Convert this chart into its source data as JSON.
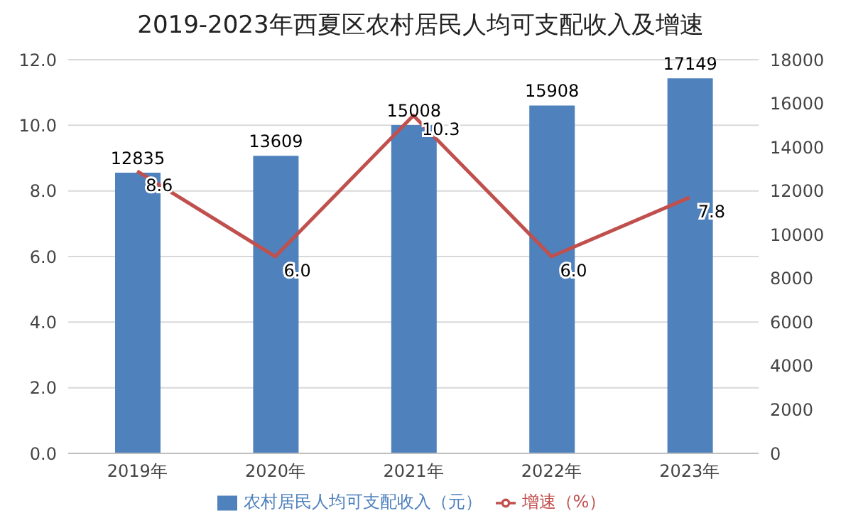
{
  "chart_data": {
    "type": "bar",
    "title": "2019-2023年西夏区农村居民人均可支配收入及增速",
    "categories": [
      "2019年",
      "2020年",
      "2021年",
      "2022年",
      "2023年"
    ],
    "series": [
      {
        "name": "农村居民人均可支配收入（元）",
        "axis": "y2",
        "color": "#4f81bd",
        "values": [
          12835,
          13609,
          15008,
          15908,
          17149
        ],
        "value_labels": [
          "12835",
          "13609",
          "15008",
          "15908",
          "17149"
        ]
      },
      {
        "name": "增速（%）",
        "type": "line",
        "axis": "y",
        "color": "#c0504d",
        "values": [
          8.6,
          6.0,
          10.3,
          6.0,
          7.8
        ],
        "value_labels": [
          "8.6",
          "6.0",
          "10.3",
          "6.0",
          "7.8"
        ]
      }
    ],
    "ylim": [
      0,
      12
    ],
    "yticks": [
      {
        "value": 0,
        "label": "0.0"
      },
      {
        "value": 2,
        "label": "2.0"
      },
      {
        "value": 4,
        "label": "4.0"
      },
      {
        "value": 6,
        "label": "6.0"
      },
      {
        "value": 8,
        "label": "8.0"
      },
      {
        "value": 10,
        "label": "10.0"
      },
      {
        "value": 12,
        "label": "12.0"
      }
    ],
    "y2lim": [
      0,
      18000
    ],
    "y2ticks": [
      0,
      2000,
      4000,
      6000,
      8000,
      10000,
      12000,
      14000,
      16000,
      18000
    ],
    "grid": "y",
    "legend": "bottom"
  }
}
